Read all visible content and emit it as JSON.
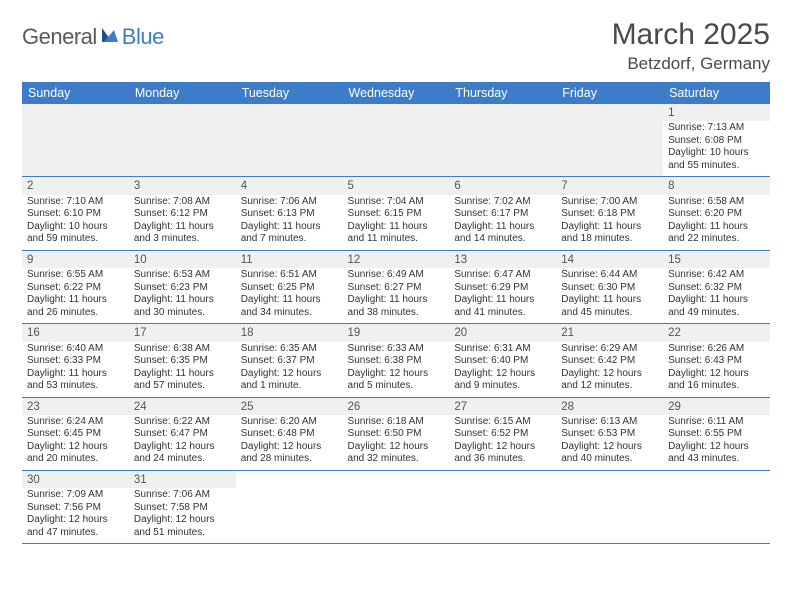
{
  "logo": {
    "general": "General",
    "blue": "Blue"
  },
  "title": "March 2025",
  "location": "Betzdorf, Germany",
  "colors": {
    "header_bg": "#3d7cc9",
    "header_text": "#ffffff",
    "row_border": "#3d7cc9",
    "shade_bg": "#f0f0f0",
    "body_text": "#333333",
    "title_text": "#4a4a4a",
    "logo_general": "#5a5a5a",
    "logo_blue": "#3d7cc9"
  },
  "days": [
    "Sunday",
    "Monday",
    "Tuesday",
    "Wednesday",
    "Thursday",
    "Friday",
    "Saturday"
  ],
  "weeks": [
    [
      null,
      null,
      null,
      null,
      null,
      null,
      {
        "n": "1",
        "sr": "Sunrise: 7:13 AM",
        "ss": "Sunset: 6:08 PM",
        "dl": "Daylight: 10 hours and 55 minutes."
      }
    ],
    [
      {
        "n": "2",
        "sr": "Sunrise: 7:10 AM",
        "ss": "Sunset: 6:10 PM",
        "dl": "Daylight: 10 hours and 59 minutes."
      },
      {
        "n": "3",
        "sr": "Sunrise: 7:08 AM",
        "ss": "Sunset: 6:12 PM",
        "dl": "Daylight: 11 hours and 3 minutes."
      },
      {
        "n": "4",
        "sr": "Sunrise: 7:06 AM",
        "ss": "Sunset: 6:13 PM",
        "dl": "Daylight: 11 hours and 7 minutes."
      },
      {
        "n": "5",
        "sr": "Sunrise: 7:04 AM",
        "ss": "Sunset: 6:15 PM",
        "dl": "Daylight: 11 hours and 11 minutes."
      },
      {
        "n": "6",
        "sr": "Sunrise: 7:02 AM",
        "ss": "Sunset: 6:17 PM",
        "dl": "Daylight: 11 hours and 14 minutes."
      },
      {
        "n": "7",
        "sr": "Sunrise: 7:00 AM",
        "ss": "Sunset: 6:18 PM",
        "dl": "Daylight: 11 hours and 18 minutes."
      },
      {
        "n": "8",
        "sr": "Sunrise: 6:58 AM",
        "ss": "Sunset: 6:20 PM",
        "dl": "Daylight: 11 hours and 22 minutes."
      }
    ],
    [
      {
        "n": "9",
        "sr": "Sunrise: 6:55 AM",
        "ss": "Sunset: 6:22 PM",
        "dl": "Daylight: 11 hours and 26 minutes."
      },
      {
        "n": "10",
        "sr": "Sunrise: 6:53 AM",
        "ss": "Sunset: 6:23 PM",
        "dl": "Daylight: 11 hours and 30 minutes."
      },
      {
        "n": "11",
        "sr": "Sunrise: 6:51 AM",
        "ss": "Sunset: 6:25 PM",
        "dl": "Daylight: 11 hours and 34 minutes."
      },
      {
        "n": "12",
        "sr": "Sunrise: 6:49 AM",
        "ss": "Sunset: 6:27 PM",
        "dl": "Daylight: 11 hours and 38 minutes."
      },
      {
        "n": "13",
        "sr": "Sunrise: 6:47 AM",
        "ss": "Sunset: 6:29 PM",
        "dl": "Daylight: 11 hours and 41 minutes."
      },
      {
        "n": "14",
        "sr": "Sunrise: 6:44 AM",
        "ss": "Sunset: 6:30 PM",
        "dl": "Daylight: 11 hours and 45 minutes."
      },
      {
        "n": "15",
        "sr": "Sunrise: 6:42 AM",
        "ss": "Sunset: 6:32 PM",
        "dl": "Daylight: 11 hours and 49 minutes."
      }
    ],
    [
      {
        "n": "16",
        "sr": "Sunrise: 6:40 AM",
        "ss": "Sunset: 6:33 PM",
        "dl": "Daylight: 11 hours and 53 minutes."
      },
      {
        "n": "17",
        "sr": "Sunrise: 6:38 AM",
        "ss": "Sunset: 6:35 PM",
        "dl": "Daylight: 11 hours and 57 minutes."
      },
      {
        "n": "18",
        "sr": "Sunrise: 6:35 AM",
        "ss": "Sunset: 6:37 PM",
        "dl": "Daylight: 12 hours and 1 minute."
      },
      {
        "n": "19",
        "sr": "Sunrise: 6:33 AM",
        "ss": "Sunset: 6:38 PM",
        "dl": "Daylight: 12 hours and 5 minutes."
      },
      {
        "n": "20",
        "sr": "Sunrise: 6:31 AM",
        "ss": "Sunset: 6:40 PM",
        "dl": "Daylight: 12 hours and 9 minutes."
      },
      {
        "n": "21",
        "sr": "Sunrise: 6:29 AM",
        "ss": "Sunset: 6:42 PM",
        "dl": "Daylight: 12 hours and 12 minutes."
      },
      {
        "n": "22",
        "sr": "Sunrise: 6:26 AM",
        "ss": "Sunset: 6:43 PM",
        "dl": "Daylight: 12 hours and 16 minutes."
      }
    ],
    [
      {
        "n": "23",
        "sr": "Sunrise: 6:24 AM",
        "ss": "Sunset: 6:45 PM",
        "dl": "Daylight: 12 hours and 20 minutes."
      },
      {
        "n": "24",
        "sr": "Sunrise: 6:22 AM",
        "ss": "Sunset: 6:47 PM",
        "dl": "Daylight: 12 hours and 24 minutes."
      },
      {
        "n": "25",
        "sr": "Sunrise: 6:20 AM",
        "ss": "Sunset: 6:48 PM",
        "dl": "Daylight: 12 hours and 28 minutes."
      },
      {
        "n": "26",
        "sr": "Sunrise: 6:18 AM",
        "ss": "Sunset: 6:50 PM",
        "dl": "Daylight: 12 hours and 32 minutes."
      },
      {
        "n": "27",
        "sr": "Sunrise: 6:15 AM",
        "ss": "Sunset: 6:52 PM",
        "dl": "Daylight: 12 hours and 36 minutes."
      },
      {
        "n": "28",
        "sr": "Sunrise: 6:13 AM",
        "ss": "Sunset: 6:53 PM",
        "dl": "Daylight: 12 hours and 40 minutes."
      },
      {
        "n": "29",
        "sr": "Sunrise: 6:11 AM",
        "ss": "Sunset: 6:55 PM",
        "dl": "Daylight: 12 hours and 43 minutes."
      }
    ],
    [
      {
        "n": "30",
        "sr": "Sunrise: 7:09 AM",
        "ss": "Sunset: 7:56 PM",
        "dl": "Daylight: 12 hours and 47 minutes."
      },
      {
        "n": "31",
        "sr": "Sunrise: 7:06 AM",
        "ss": "Sunset: 7:58 PM",
        "dl": "Daylight: 12 hours and 51 minutes."
      },
      null,
      null,
      null,
      null,
      null
    ]
  ]
}
